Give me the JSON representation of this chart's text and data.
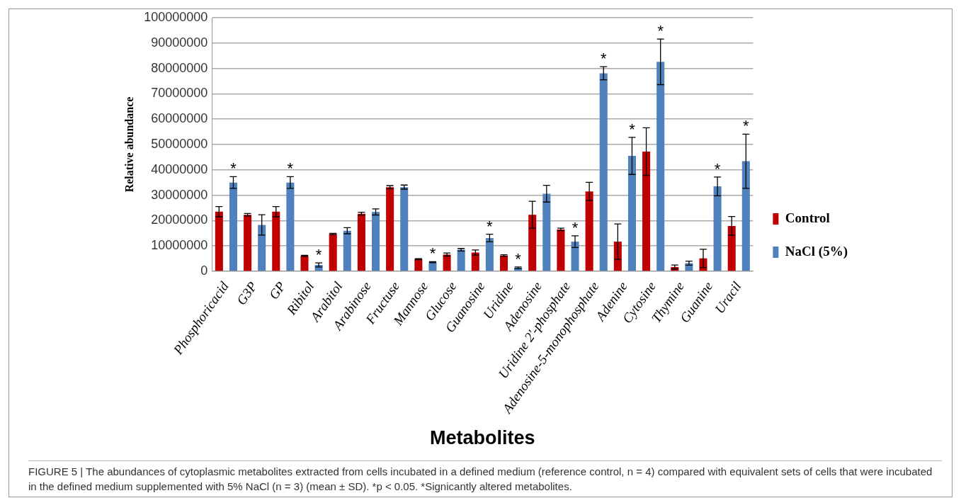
{
  "chart_data": {
    "type": "bar",
    "xlabel": "Metabolites",
    "ylabel": "Relative abundance",
    "categories": [
      "Phosphoricacid",
      "G3P",
      "GP",
      "Ribitol",
      "Arabitol",
      "Arabinose",
      "Fructuse",
      "Mannose",
      "Glucose",
      "Guanosine",
      "Uridine",
      "Adenosine",
      "Uridine 2'-phosphate",
      "Adenosine-5-monophosphate",
      "Adenine",
      "Cytosine",
      "Thymine",
      "Guanine",
      "Uracil"
    ],
    "series": [
      {
        "name": "Control",
        "color": "#c00000",
        "values": [
          23500000,
          22300000,
          23500000,
          6100000,
          14700000,
          22700000,
          33200000,
          4800000,
          6600000,
          7400000,
          6200000,
          22300000,
          16500000,
          31500000,
          11700000,
          47200000,
          1700000,
          5100000,
          17900000
        ],
        "errors": [
          2000000,
          500000,
          2000000,
          200000,
          300000,
          600000,
          600000,
          200000,
          600000,
          1000000,
          300000,
          5300000,
          500000,
          3600000,
          7000000,
          9400000,
          800000,
          3600000,
          3700000
        ]
      },
      {
        "name": "NaCl (5%)",
        "color": "#4f81bd",
        "values": [
          35000000,
          18300000,
          35000000,
          2500000,
          16000000,
          23400000,
          33200000,
          3600000,
          8500000,
          13100000,
          1400000,
          30600000,
          11700000,
          78100000,
          45500000,
          82600000,
          3200000,
          33500000,
          43400000
        ],
        "errors": [
          2300000,
          4000000,
          2300000,
          800000,
          1200000,
          1200000,
          800000,
          200000,
          500000,
          1500000,
          300000,
          3300000,
          2300000,
          2600000,
          7300000,
          9000000,
          800000,
          3700000,
          10700000
        ]
      }
    ],
    "ylim": [
      0,
      100000000
    ],
    "yticks": [
      0,
      10000000,
      20000000,
      30000000,
      40000000,
      50000000,
      60000000,
      70000000,
      80000000,
      90000000,
      100000000
    ],
    "grid": "y",
    "legend": "right",
    "annotations": [
      {
        "text": "*",
        "x": "Phosphoricacid",
        "y": 35000000
      },
      {
        "text": "*",
        "x": "GP",
        "y": 35000000
      },
      {
        "text": "*",
        "x": "Ribitol",
        "y": 2500000
      },
      {
        "text": "*",
        "x": "Mannose",
        "y": 3600000
      },
      {
        "text": "*",
        "x": "Guanosine",
        "y": 13100000
      },
      {
        "text": "*",
        "x": "Uridine",
        "y": 1400000
      },
      {
        "text": "*",
        "x": "Uridine 2'-phosphate",
        "y": 11700000
      },
      {
        "text": "*",
        "x": "Adenosine-5-monophosphate",
        "y": 78100000
      },
      {
        "text": "*",
        "x": "Adenine",
        "y": 45500000
      },
      {
        "text": "*",
        "x": "Cytosine",
        "y": 82600000
      },
      {
        "text": "*",
        "x": "Guanine",
        "y": 33500000
      },
      {
        "text": "*",
        "x": "Uracil",
        "y": 43400000
      },
      "FIGURE 5 | The abundances of cytoplasmic metabolites extracted from cells incubated in a defined medium (reference control, n = 4) compared with equivalent sets of cells that were incubated in the defined medium supplemented with 5% NaCl (n = 3) (mean ± SD). *p < 0.05. *Signicantly altered metabolites."
    ]
  }
}
